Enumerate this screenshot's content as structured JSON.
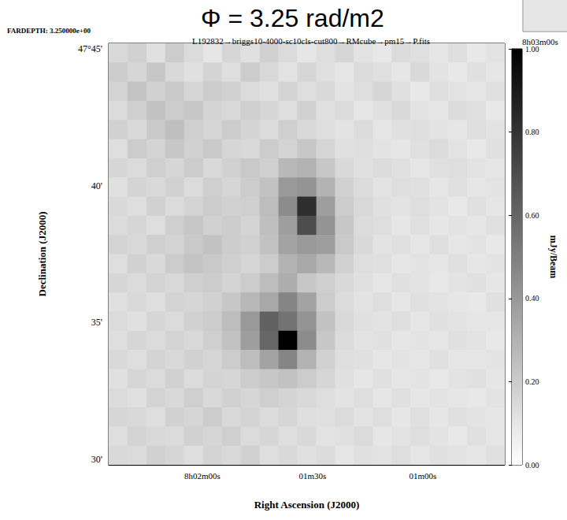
{
  "chart_data": {
    "type": "heatmap",
    "title": "Φ = 3.25 rad/m2",
    "subtitle": "L192832→briggs10-4000-sc10cls-cut800→RMcube→pm15→P.fits",
    "annotations": [
      {
        "text": "FARDEPTH: 3.250000e+00"
      },
      {
        "text": "8h03m00s"
      }
    ],
    "xlabel": "Right Ascension (J2000)",
    "ylabel": "Declination (J2000)",
    "xlim": [
      145.5,
      37.7
    ],
    "ylim": [
      29.8,
      45.2
    ],
    "xticks": [
      {
        "value": 120,
        "label": "8h02m00s"
      },
      {
        "value": 90,
        "label": "01m30s"
      },
      {
        "value": 60,
        "label": "01m00s"
      }
    ],
    "yticks": [
      {
        "value": 30,
        "label": "30'"
      },
      {
        "value": 35,
        "label": "35'"
      },
      {
        "value": 40,
        "label": "40'"
      },
      {
        "value": 45,
        "label": "47°45'"
      }
    ],
    "grid": false,
    "x_edges": [
      145.5,
      140.4,
      135.2,
      130.1,
      125.0,
      119.8,
      114.7,
      109.6,
      104.4,
      99.3,
      94.2,
      89.0,
      83.9,
      78.8,
      73.6,
      68.5,
      63.4,
      58.2,
      53.1,
      48.0,
      42.8,
      37.7
    ],
    "y_edges": [
      45.2,
      44.5,
      43.8,
      43.1,
      42.4,
      41.7,
      41.0,
      40.3,
      39.6,
      38.9,
      38.2,
      37.5,
      36.8,
      36.1,
      35.4,
      34.7,
      34.0,
      33.3,
      32.6,
      31.9,
      31.2,
      30.5,
      29.8
    ],
    "values": [
      [
        0.15,
        0.18,
        0.12,
        0.2,
        0.14,
        0.1,
        0.16,
        0.12,
        0.18,
        0.14,
        0.1,
        0.13,
        0.16,
        0.11,
        0.09,
        0.14,
        0.12,
        0.1,
        0.13,
        0.09,
        0.11
      ],
      [
        0.2,
        0.16,
        0.22,
        0.15,
        0.12,
        0.17,
        0.13,
        0.2,
        0.15,
        0.11,
        0.16,
        0.12,
        0.1,
        0.14,
        0.12,
        0.1,
        0.15,
        0.11,
        0.09,
        0.12,
        0.1
      ],
      [
        0.17,
        0.23,
        0.18,
        0.21,
        0.16,
        0.2,
        0.18,
        0.14,
        0.12,
        0.17,
        0.13,
        0.15,
        0.11,
        0.13,
        0.16,
        0.12,
        0.09,
        0.13,
        0.11,
        0.1,
        0.12
      ],
      [
        0.14,
        0.19,
        0.24,
        0.2,
        0.22,
        0.17,
        0.15,
        0.19,
        0.16,
        0.13,
        0.18,
        0.12,
        0.14,
        0.1,
        0.12,
        0.15,
        0.11,
        0.1,
        0.14,
        0.12,
        0.09
      ],
      [
        0.18,
        0.15,
        0.21,
        0.25,
        0.19,
        0.16,
        0.2,
        0.17,
        0.14,
        0.19,
        0.15,
        0.13,
        0.11,
        0.14,
        0.1,
        0.12,
        0.13,
        0.11,
        0.1,
        0.13,
        0.11
      ],
      [
        0.13,
        0.2,
        0.17,
        0.22,
        0.18,
        0.21,
        0.16,
        0.15,
        0.2,
        0.17,
        0.22,
        0.16,
        0.12,
        0.13,
        0.11,
        0.1,
        0.12,
        0.14,
        0.11,
        0.09,
        0.12
      ],
      [
        0.16,
        0.14,
        0.19,
        0.16,
        0.2,
        0.15,
        0.18,
        0.21,
        0.19,
        0.28,
        0.3,
        0.22,
        0.15,
        0.12,
        0.14,
        0.12,
        0.1,
        0.12,
        0.13,
        0.11,
        0.1
      ],
      [
        0.12,
        0.17,
        0.15,
        0.18,
        0.14,
        0.19,
        0.16,
        0.2,
        0.24,
        0.4,
        0.42,
        0.3,
        0.18,
        0.14,
        0.11,
        0.13,
        0.12,
        0.1,
        0.12,
        0.1,
        0.11
      ],
      [
        0.15,
        0.13,
        0.18,
        0.14,
        0.17,
        0.2,
        0.18,
        0.19,
        0.26,
        0.45,
        0.82,
        0.38,
        0.2,
        0.15,
        0.12,
        0.11,
        0.13,
        0.11,
        0.09,
        0.12,
        0.1
      ],
      [
        0.14,
        0.16,
        0.13,
        0.19,
        0.22,
        0.18,
        0.2,
        0.17,
        0.25,
        0.38,
        0.7,
        0.42,
        0.22,
        0.14,
        0.13,
        0.1,
        0.12,
        0.1,
        0.11,
        0.1,
        0.12
      ],
      [
        0.17,
        0.15,
        0.19,
        0.17,
        0.21,
        0.24,
        0.2,
        0.18,
        0.24,
        0.36,
        0.4,
        0.38,
        0.21,
        0.15,
        0.11,
        0.12,
        0.1,
        0.13,
        0.1,
        0.11,
        0.09
      ],
      [
        0.13,
        0.18,
        0.15,
        0.2,
        0.23,
        0.21,
        0.19,
        0.16,
        0.2,
        0.3,
        0.34,
        0.28,
        0.18,
        0.13,
        0.12,
        0.1,
        0.11,
        0.1,
        0.12,
        0.1,
        0.11
      ],
      [
        0.16,
        0.14,
        0.17,
        0.15,
        0.19,
        0.2,
        0.17,
        0.2,
        0.26,
        0.32,
        0.22,
        0.19,
        0.15,
        0.12,
        0.1,
        0.12,
        0.11,
        0.09,
        0.11,
        0.12,
        0.1
      ],
      [
        0.12,
        0.15,
        0.13,
        0.17,
        0.16,
        0.18,
        0.22,
        0.28,
        0.34,
        0.48,
        0.36,
        0.2,
        0.14,
        0.11,
        0.13,
        0.1,
        0.12,
        0.11,
        0.1,
        0.09,
        0.12
      ],
      [
        0.14,
        0.12,
        0.16,
        0.14,
        0.18,
        0.2,
        0.26,
        0.4,
        0.62,
        0.55,
        0.42,
        0.24,
        0.15,
        0.12,
        0.11,
        0.13,
        0.1,
        0.12,
        0.11,
        0.1,
        0.1
      ],
      [
        0.13,
        0.16,
        0.14,
        0.17,
        0.15,
        0.19,
        0.24,
        0.38,
        0.6,
        1.0,
        0.45,
        0.22,
        0.14,
        0.11,
        0.12,
        0.1,
        0.11,
        0.1,
        0.12,
        0.11,
        0.09
      ],
      [
        0.15,
        0.13,
        0.17,
        0.15,
        0.18,
        0.16,
        0.2,
        0.26,
        0.36,
        0.48,
        0.3,
        0.18,
        0.13,
        0.12,
        0.1,
        0.11,
        0.1,
        0.12,
        0.1,
        0.1,
        0.11
      ],
      [
        0.12,
        0.16,
        0.14,
        0.18,
        0.14,
        0.17,
        0.16,
        0.2,
        0.22,
        0.24,
        0.2,
        0.16,
        0.12,
        0.1,
        0.12,
        0.1,
        0.11,
        0.09,
        0.11,
        0.12,
        0.1
      ],
      [
        0.14,
        0.12,
        0.17,
        0.15,
        0.19,
        0.15,
        0.18,
        0.16,
        0.19,
        0.17,
        0.15,
        0.13,
        0.11,
        0.13,
        0.1,
        0.12,
        0.1,
        0.11,
        0.1,
        0.09,
        0.11
      ],
      [
        0.16,
        0.15,
        0.13,
        0.18,
        0.16,
        0.2,
        0.15,
        0.17,
        0.14,
        0.16,
        0.13,
        0.12,
        0.14,
        0.11,
        0.13,
        0.1,
        0.12,
        0.1,
        0.12,
        0.11,
        0.1
      ],
      [
        0.13,
        0.17,
        0.15,
        0.14,
        0.18,
        0.16,
        0.19,
        0.14,
        0.16,
        0.13,
        0.15,
        0.11,
        0.12,
        0.14,
        0.1,
        0.11,
        0.13,
        0.11,
        0.09,
        0.12,
        0.1
      ],
      [
        0.15,
        0.14,
        0.18,
        0.16,
        0.13,
        0.17,
        0.15,
        0.18,
        0.13,
        0.15,
        0.12,
        0.14,
        0.1,
        0.12,
        0.11,
        0.13,
        0.1,
        0.12,
        0.11,
        0.1,
        0.12
      ]
    ],
    "colorbar": {
      "label": "mJy/Beam",
      "range": [
        0,
        1
      ],
      "ticks": [
        {
          "value": 0,
          "label": "0.00"
        },
        {
          "value": 0.2,
          "label": "0.20"
        },
        {
          "value": 0.4,
          "label": "0.40"
        },
        {
          "value": 0.6,
          "label": "0.60"
        },
        {
          "value": 0.8,
          "label": "0.80"
        },
        {
          "value": 1,
          "label": "1.00"
        }
      ]
    }
  }
}
